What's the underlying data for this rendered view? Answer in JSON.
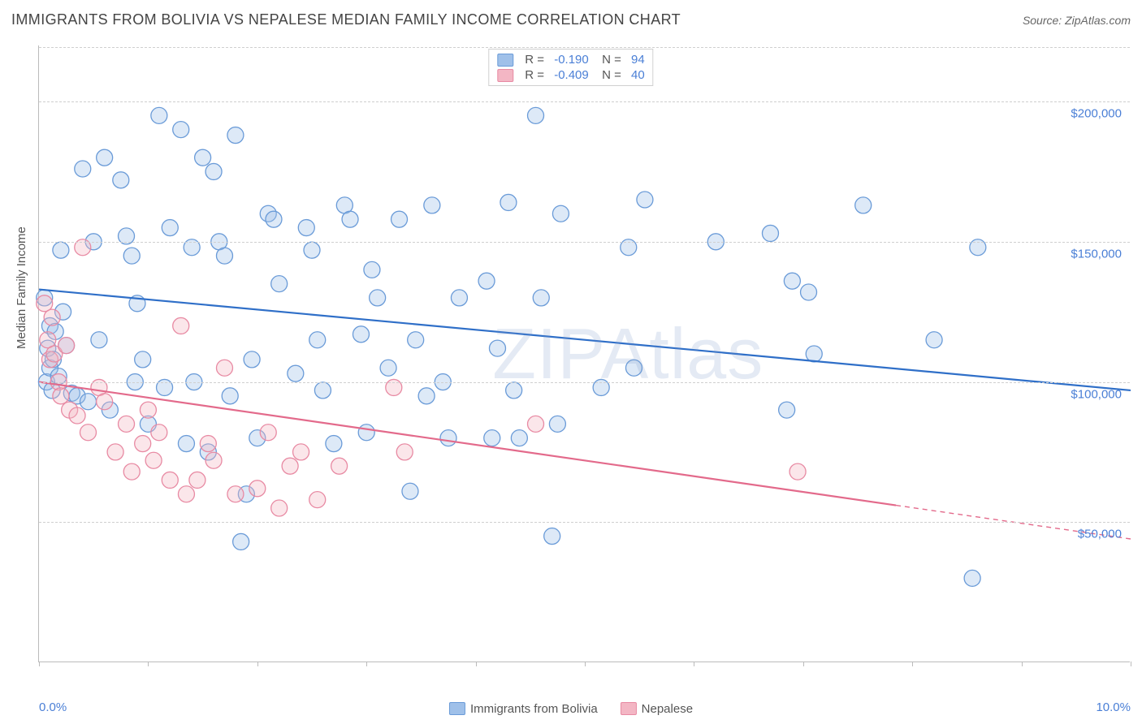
{
  "title": "IMMIGRANTS FROM BOLIVIA VS NEPALESE MEDIAN FAMILY INCOME CORRELATION CHART",
  "source": "Source: ZipAtlas.com",
  "watermark": "ZIPAtlas",
  "ylabel": "Median Family Income",
  "chart": {
    "type": "scatter-with-regression",
    "background_color": "#ffffff",
    "grid_color": "#cfcfcf",
    "xlim": [
      0.0,
      10.0
    ],
    "ylim": [
      0,
      220000
    ],
    "x_format": "percent",
    "y_format": "currency",
    "xmin_label": "0.0%",
    "xmax_label": "10.0%",
    "yticks": [
      50000,
      100000,
      150000,
      200000
    ],
    "ytick_labels": [
      "$50,000",
      "$100,000",
      "$150,000",
      "$200,000"
    ],
    "xtick_positions": [
      0.0,
      1.0,
      2.0,
      3.0,
      4.0,
      5.0,
      6.0,
      7.0,
      8.0,
      9.0,
      10.0
    ],
    "marker_radius": 10,
    "marker_fill_opacity": 0.35,
    "marker_stroke_width": 1.3,
    "line_width": 2.2,
    "label_fontsize": 15,
    "title_fontsize": 18,
    "tick_color": "#4a7fd6",
    "axis_color": "#bbbbbb"
  },
  "series": [
    {
      "key": "bolivia",
      "label": "Immigrants from Bolivia",
      "color_fill": "#9fc0e9",
      "color_stroke": "#6a9bd8",
      "line_color": "#2f6fc8",
      "R": -0.19,
      "N": 94,
      "regression": {
        "x1": 0.0,
        "y1": 133000,
        "x2": 10.0,
        "y2": 97000
      },
      "points": [
        [
          0.05,
          130000
        ],
        [
          0.07,
          100000
        ],
        [
          0.08,
          112000
        ],
        [
          0.1,
          105000
        ],
        [
          0.1,
          120000
        ],
        [
          0.12,
          97000
        ],
        [
          0.13,
          108000
        ],
        [
          0.15,
          118000
        ],
        [
          0.18,
          102000
        ],
        [
          0.2,
          147000
        ],
        [
          0.22,
          125000
        ],
        [
          0.25,
          113000
        ],
        [
          0.3,
          96000
        ],
        [
          0.35,
          95000
        ],
        [
          0.4,
          176000
        ],
        [
          0.45,
          93000
        ],
        [
          0.5,
          150000
        ],
        [
          0.55,
          115000
        ],
        [
          0.6,
          180000
        ],
        [
          0.65,
          90000
        ],
        [
          0.75,
          172000
        ],
        [
          0.8,
          152000
        ],
        [
          0.85,
          145000
        ],
        [
          0.88,
          100000
        ],
        [
          0.9,
          128000
        ],
        [
          0.95,
          108000
        ],
        [
          1.0,
          85000
        ],
        [
          1.1,
          195000
        ],
        [
          1.15,
          98000
        ],
        [
          1.2,
          155000
        ],
        [
          1.3,
          190000
        ],
        [
          1.35,
          78000
        ],
        [
          1.4,
          148000
        ],
        [
          1.42,
          100000
        ],
        [
          1.5,
          180000
        ],
        [
          1.55,
          75000
        ],
        [
          1.6,
          175000
        ],
        [
          1.65,
          150000
        ],
        [
          1.7,
          145000
        ],
        [
          1.75,
          95000
        ],
        [
          1.8,
          188000
        ],
        [
          1.85,
          43000
        ],
        [
          1.9,
          60000
        ],
        [
          1.95,
          108000
        ],
        [
          2.0,
          80000
        ],
        [
          2.1,
          160000
        ],
        [
          2.15,
          158000
        ],
        [
          2.2,
          135000
        ],
        [
          2.35,
          103000
        ],
        [
          2.45,
          155000
        ],
        [
          2.5,
          147000
        ],
        [
          2.55,
          115000
        ],
        [
          2.6,
          97000
        ],
        [
          2.7,
          78000
        ],
        [
          2.8,
          163000
        ],
        [
          2.85,
          158000
        ],
        [
          2.95,
          117000
        ],
        [
          3.0,
          82000
        ],
        [
          3.05,
          140000
        ],
        [
          3.1,
          130000
        ],
        [
          3.2,
          105000
        ],
        [
          3.3,
          158000
        ],
        [
          3.4,
          61000
        ],
        [
          3.45,
          115000
        ],
        [
          3.55,
          95000
        ],
        [
          3.6,
          163000
        ],
        [
          3.7,
          100000
        ],
        [
          3.75,
          80000
        ],
        [
          3.85,
          130000
        ],
        [
          4.1,
          136000
        ],
        [
          4.2,
          112000
        ],
        [
          4.3,
          164000
        ],
        [
          4.35,
          97000
        ],
        [
          4.4,
          80000
        ],
        [
          4.55,
          195000
        ],
        [
          4.6,
          130000
        ],
        [
          4.7,
          45000
        ],
        [
          4.75,
          85000
        ],
        [
          5.15,
          98000
        ],
        [
          5.4,
          148000
        ],
        [
          5.45,
          105000
        ],
        [
          5.55,
          165000
        ],
        [
          6.2,
          150000
        ],
        [
          6.7,
          153000
        ],
        [
          6.85,
          90000
        ],
        [
          6.9,
          136000
        ],
        [
          7.05,
          132000
        ],
        [
          7.1,
          110000
        ],
        [
          7.55,
          163000
        ],
        [
          8.2,
          115000
        ],
        [
          8.55,
          30000
        ],
        [
          8.6,
          148000
        ],
        [
          4.78,
          160000
        ],
        [
          4.15,
          80000
        ]
      ]
    },
    {
      "key": "nepalese",
      "label": "Nepalese",
      "color_fill": "#f3b6c4",
      "color_stroke": "#e88aa3",
      "line_color": "#e36a8b",
      "R": -0.409,
      "N": 40,
      "regression_solid": {
        "x1": 0.0,
        "y1": 100000,
        "x2": 7.85,
        "y2": 56000
      },
      "regression_dashed": {
        "x1": 7.85,
        "y1": 56000,
        "x2": 10.0,
        "y2": 44000
      },
      "points": [
        [
          0.05,
          128000
        ],
        [
          0.08,
          115000
        ],
        [
          0.1,
          108000
        ],
        [
          0.12,
          123000
        ],
        [
          0.14,
          110000
        ],
        [
          0.18,
          100000
        ],
        [
          0.2,
          95000
        ],
        [
          0.25,
          113000
        ],
        [
          0.28,
          90000
        ],
        [
          0.35,
          88000
        ],
        [
          0.4,
          148000
        ],
        [
          0.45,
          82000
        ],
        [
          0.55,
          98000
        ],
        [
          0.6,
          93000
        ],
        [
          0.7,
          75000
        ],
        [
          0.8,
          85000
        ],
        [
          0.85,
          68000
        ],
        [
          0.95,
          78000
        ],
        [
          1.0,
          90000
        ],
        [
          1.05,
          72000
        ],
        [
          1.1,
          82000
        ],
        [
          1.2,
          65000
        ],
        [
          1.3,
          120000
        ],
        [
          1.35,
          60000
        ],
        [
          1.45,
          65000
        ],
        [
          1.55,
          78000
        ],
        [
          1.6,
          72000
        ],
        [
          1.7,
          105000
        ],
        [
          1.8,
          60000
        ],
        [
          2.0,
          62000
        ],
        [
          2.1,
          82000
        ],
        [
          2.2,
          55000
        ],
        [
          2.3,
          70000
        ],
        [
          2.4,
          75000
        ],
        [
          2.55,
          58000
        ],
        [
          2.75,
          70000
        ],
        [
          3.25,
          98000
        ],
        [
          3.35,
          75000
        ],
        [
          4.55,
          85000
        ],
        [
          6.95,
          68000
        ]
      ]
    }
  ],
  "top_legend": {
    "rows": [
      {
        "series_key": "bolivia",
        "r_label": "R =",
        "r_value": "-0.190",
        "n_label": "N =",
        "n_value": "94"
      },
      {
        "series_key": "nepalese",
        "r_label": "R =",
        "r_value": "-0.409",
        "n_label": "N =",
        "n_value": "40"
      }
    ]
  }
}
